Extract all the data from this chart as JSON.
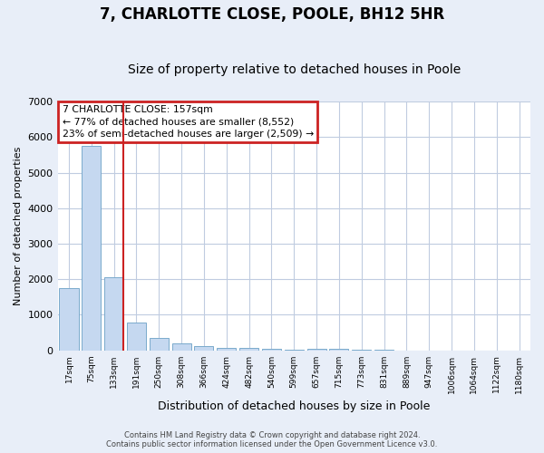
{
  "title": "7, CHARLOTTE CLOSE, POOLE, BH12 5HR",
  "subtitle": "Size of property relative to detached houses in Poole",
  "xlabel": "Distribution of detached houses by size in Poole",
  "ylabel": "Number of detached properties",
  "footer_line1": "Contains HM Land Registry data © Crown copyright and database right 2024.",
  "footer_line2": "Contains public sector information licensed under the Open Government Licence v3.0.",
  "bar_labels": [
    "17sqm",
    "75sqm",
    "133sqm",
    "191sqm",
    "250sqm",
    "308sqm",
    "366sqm",
    "424sqm",
    "482sqm",
    "540sqm",
    "599sqm",
    "657sqm",
    "715sqm",
    "773sqm",
    "831sqm",
    "889sqm",
    "947sqm",
    "1006sqm",
    "1064sqm",
    "1122sqm",
    "1180sqm"
  ],
  "bar_values": [
    1750,
    5750,
    2050,
    780,
    340,
    195,
    110,
    75,
    75,
    55,
    30,
    55,
    55,
    5,
    5,
    3,
    2,
    2,
    1,
    1,
    1
  ],
  "bar_color": "#c5d8f0",
  "bar_edge_color": "#7aaacc",
  "vline_x_index": 2.42,
  "vline_color": "#cc2222",
  "annotation_text": "7 CHARLOTTE CLOSE: 157sqm\n← 77% of detached houses are smaller (8,552)\n23% of semi-detached houses are larger (2,509) →",
  "annotation_box_color": "#cc2222",
  "ylim": [
    0,
    7000
  ],
  "yticks": [
    0,
    1000,
    2000,
    3000,
    4000,
    5000,
    6000,
    7000
  ],
  "bg_color": "#e8eef8",
  "plot_bg_color": "#ffffff",
  "grid_color": "#c0cce0",
  "title_fontsize": 12,
  "subtitle_fontsize": 10,
  "figsize": [
    6.0,
    5.0
  ],
  "dpi": 100
}
